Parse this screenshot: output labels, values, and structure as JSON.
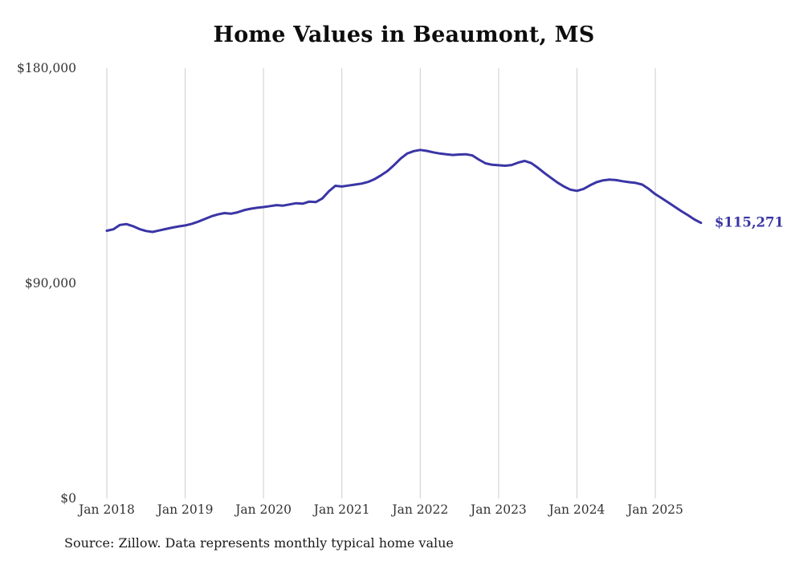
{
  "page": {
    "background": "#ffffff"
  },
  "chart_data": {
    "type": "line",
    "title": "Home Values in Beaumont, MS",
    "source_note": "Source: Zillow. Data represents monthly typical home value",
    "series_name": "Typical home value",
    "frequency": "monthly",
    "start_month": "Jan 2018",
    "end_month": "Aug 2025",
    "end_label": "$115,271",
    "last_value": 115271,
    "ylim": [
      0,
      180000
    ],
    "grid": "vertical-only",
    "legend": "none",
    "y_ticks": [
      {
        "label": "$180,000",
        "value": 180000
      },
      {
        "label": "$90,000",
        "value": 90000
      },
      {
        "label": "$0",
        "value": 0
      }
    ],
    "x_ticks": [
      {
        "label": "Jan 2018",
        "month_index": 0
      },
      {
        "label": "Jan 2019",
        "month_index": 12
      },
      {
        "label": "Jan 2020",
        "month_index": 24
      },
      {
        "label": "Jan 2021",
        "month_index": 36
      },
      {
        "label": "Jan 2022",
        "month_index": 48
      },
      {
        "label": "Jan 2023",
        "month_index": 60
      },
      {
        "label": "Jan 2024",
        "month_index": 72
      },
      {
        "label": "Jan 2025",
        "month_index": 84
      }
    ],
    "values": [
      112000,
      112600,
      114400,
      114800,
      113900,
      112700,
      111900,
      111500,
      112100,
      112700,
      113300,
      113800,
      114200,
      114900,
      115800,
      116900,
      118000,
      118800,
      119400,
      119100,
      119700,
      120600,
      121200,
      121600,
      121900,
      122300,
      122700,
      122500,
      123000,
      123500,
      123300,
      124200,
      124000,
      125500,
      128500,
      130800,
      130500,
      130900,
      131300,
      131700,
      132400,
      133600,
      135200,
      137000,
      139500,
      142200,
      144300,
      145300,
      145800,
      145400,
      144800,
      144300,
      144000,
      143700,
      143900,
      144000,
      143500,
      141700,
      140200,
      139600,
      139400,
      139200,
      139500,
      140500,
      141200,
      140300,
      138400,
      136200,
      134200,
      132200,
      130500,
      129200,
      128700,
      129500,
      131000,
      132300,
      133100,
      133400,
      133200,
      132700,
      132300,
      132000,
      131300,
      129500,
      127300,
      125600,
      123800,
      122000,
      120200,
      118500,
      116700,
      115271
    ],
    "colors": {
      "line": "#3a35a5",
      "grid": "#cdcdcd",
      "axis_text": "#333333",
      "title_text": "#0d0d0d",
      "source_text": "#1a1a1a",
      "end_label": "#3a35a5"
    }
  }
}
